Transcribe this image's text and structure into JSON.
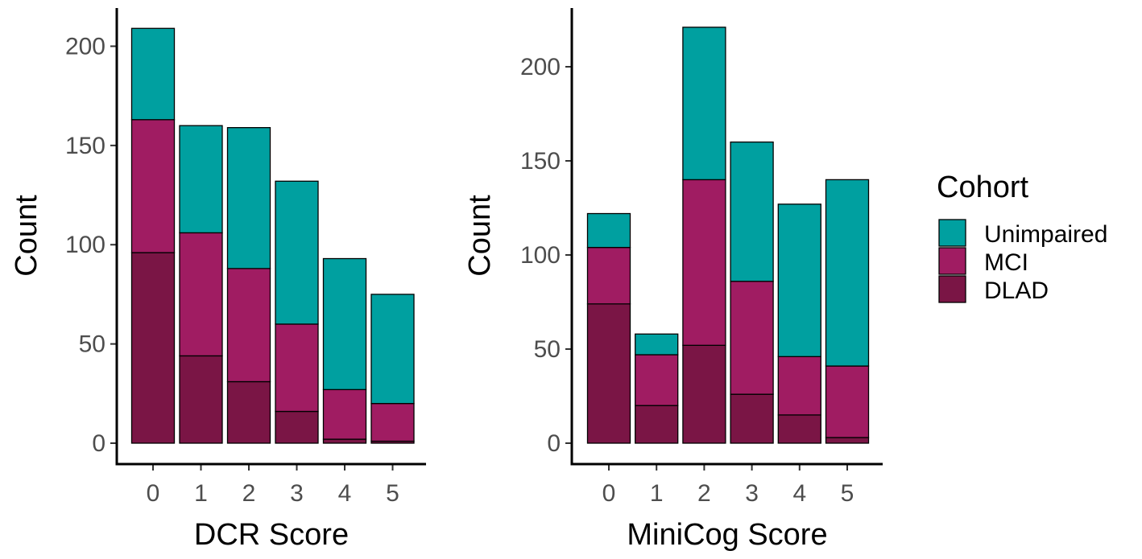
{
  "chart_data": [
    {
      "type": "bar",
      "stacked": true,
      "xlabel": "DCR Score",
      "ylabel": "Count",
      "categories": [
        "0",
        "1",
        "2",
        "3",
        "4",
        "5"
      ],
      "yticks": [
        "0",
        "50",
        "100",
        "150",
        "200"
      ],
      "ylim": [
        0,
        220
      ],
      "series": [
        {
          "name": "DLAD",
          "values": [
            96,
            44,
            31,
            16,
            2,
            1
          ]
        },
        {
          "name": "MCI",
          "values": [
            67,
            62,
            57,
            44,
            25,
            19
          ]
        },
        {
          "name": "Unimpaired",
          "values": [
            46,
            54,
            71,
            72,
            66,
            55
          ]
        }
      ]
    },
    {
      "type": "bar",
      "stacked": true,
      "xlabel": "MiniCog Score",
      "ylabel": "Count",
      "categories": [
        "0",
        "1",
        "2",
        "3",
        "4",
        "5"
      ],
      "yticks": [
        "0",
        "50",
        "100",
        "150",
        "200"
      ],
      "ylim": [
        0,
        226
      ],
      "series": [
        {
          "name": "DLAD",
          "values": [
            74,
            20,
            52,
            26,
            15,
            3
          ]
        },
        {
          "name": "MCI",
          "values": [
            30,
            27,
            88,
            60,
            31,
            38
          ]
        },
        {
          "name": "Unimpaired",
          "values": [
            18,
            11,
            81,
            74,
            81,
            99
          ]
        }
      ]
    }
  ],
  "legend": {
    "title": "Cohort",
    "items": [
      {
        "label": "Unimpaired",
        "color": "#00A0A0"
      },
      {
        "label": "MCI",
        "color": "#A01C62"
      },
      {
        "label": "DLAD",
        "color": "#7A1545"
      }
    ]
  },
  "colors": {
    "DLAD": "#7A1545",
    "MCI": "#A01C62",
    "Unimpaired": "#00A0A0"
  }
}
